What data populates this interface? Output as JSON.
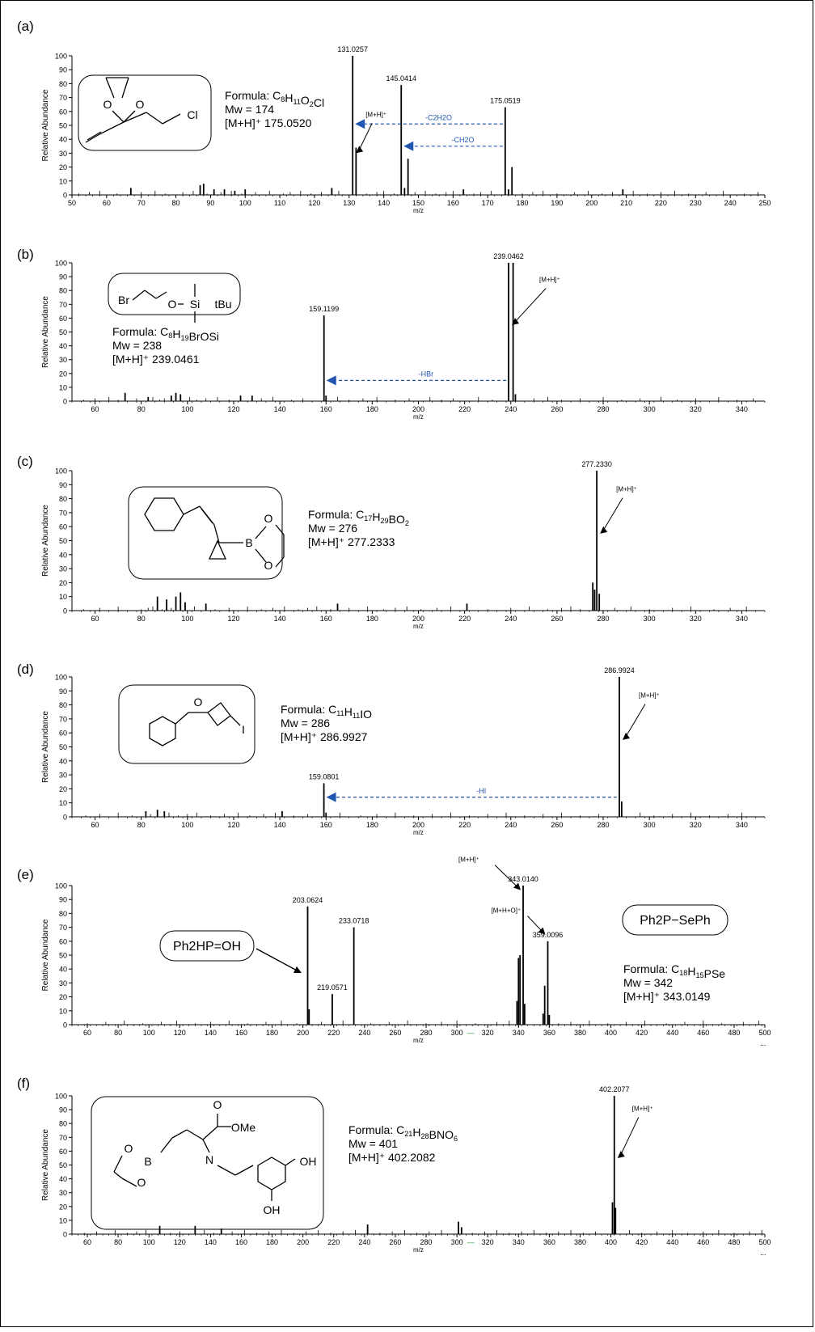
{
  "chart_data": [
    {
      "type": "bar",
      "panel_label": "(a)",
      "xlabel": "m/z",
      "ylabel": "Relative Abundance",
      "xlim": [
        50,
        250
      ],
      "ylim": [
        0,
        100
      ],
      "xticks": [
        50,
        60,
        70,
        80,
        90,
        100,
        110,
        120,
        130,
        140,
        150,
        160,
        170,
        180,
        190,
        200,
        210,
        220,
        230,
        240,
        250
      ],
      "yticks": [
        0,
        10,
        20,
        30,
        40,
        50,
        60,
        70,
        80,
        90,
        100
      ],
      "peaks": [
        {
          "x": 131.0257,
          "y": 100,
          "label": "131.0257"
        },
        {
          "x": 132.0,
          "y": 34
        },
        {
          "x": 145.0414,
          "y": 79,
          "label": "145.0414"
        },
        {
          "x": 146.0,
          "y": 5
        },
        {
          "x": 147.0,
          "y": 26
        },
        {
          "x": 175.0519,
          "y": 63,
          "label": "175.0519"
        },
        {
          "x": 176.0,
          "y": 4
        },
        {
          "x": 177.0,
          "y": 20
        },
        {
          "x": 67,
          "y": 5
        },
        {
          "x": 87,
          "y": 7
        },
        {
          "x": 88,
          "y": 8
        },
        {
          "x": 91,
          "y": 4
        },
        {
          "x": 94,
          "y": 4
        },
        {
          "x": 97,
          "y": 3
        },
        {
          "x": 100,
          "y": 4
        },
        {
          "x": 125,
          "y": 5
        },
        {
          "x": 163,
          "y": 4
        },
        {
          "x": 209,
          "y": 4
        }
      ],
      "noise": [
        52,
        55,
        58,
        63,
        70,
        74,
        77,
        82,
        85,
        89,
        93,
        96,
        99,
        103,
        107,
        111,
        113,
        116,
        119,
        122,
        127,
        135,
        138,
        140,
        143,
        149,
        152,
        155,
        158,
        160,
        166,
        168,
        171,
        180,
        183,
        186,
        190,
        195,
        199,
        203,
        206,
        212,
        216,
        220,
        224,
        228,
        233,
        238,
        244,
        248
      ],
      "arrows": [
        {
          "from": 175.0519,
          "to": 131.0257,
          "y": 51,
          "label": "-C2H2O",
          "sub": [
            "2",
            "2"
          ]
        },
        {
          "from": 175.0519,
          "to": 145.0414,
          "y": 35,
          "label": "-CH2O",
          "sub": [
            "",
            "2"
          ]
        }
      ],
      "mh_label": "[M+H]⁺",
      "compound": {
        "formula_prefix": "Formula: ",
        "formula": "C8H11O2Cl",
        "mw": "Mw = 174",
        "mh": "[M+H]⁺ 175.0520",
        "atoms": [
          "O",
          "O",
          "Cl"
        ]
      }
    },
    {
      "type": "bar",
      "panel_label": "(b)",
      "xlabel": "m/z",
      "ylabel": "Relative Abundance",
      "xlim": [
        50,
        350
      ],
      "ylim": [
        0,
        100
      ],
      "xticks": [
        60,
        80,
        100,
        120,
        140,
        160,
        180,
        200,
        220,
        240,
        260,
        280,
        300,
        320,
        340
      ],
      "yticks": [
        0,
        10,
        20,
        30,
        40,
        50,
        60,
        70,
        80,
        90,
        100
      ],
      "peaks": [
        {
          "x": 159.1199,
          "y": 62,
          "label": "159.1199"
        },
        {
          "x": 160.0,
          "y": 4
        },
        {
          "x": 239.0462,
          "y": 100,
          "label": "239.0462"
        },
        {
          "x": 241.0,
          "y": 100
        },
        {
          "x": 242.0,
          "y": 5
        },
        {
          "x": 73,
          "y": 6
        },
        {
          "x": 83,
          "y": 3
        },
        {
          "x": 93,
          "y": 4
        },
        {
          "x": 95,
          "y": 6
        },
        {
          "x": 97,
          "y": 5
        },
        {
          "x": 123,
          "y": 4
        },
        {
          "x": 128,
          "y": 4
        }
      ],
      "noise": [
        55,
        60,
        66,
        70,
        78,
        85,
        88,
        90,
        101,
        104,
        108,
        113,
        118,
        132,
        137,
        145,
        150,
        165,
        170,
        176,
        182,
        190,
        196,
        205,
        210,
        215,
        226,
        232,
        250,
        256,
        262,
        270,
        280,
        288,
        296,
        305,
        312,
        320,
        330,
        338,
        345
      ],
      "arrows": [
        {
          "from": 239.0462,
          "to": 159.1199,
          "y": 15,
          "label": "-HBr",
          "sub": []
        }
      ],
      "mh_label": "[M+H]⁺",
      "compound": {
        "formula_prefix": "Formula: ",
        "formula": "C8H19BrOSi",
        "mw": "Mw = 238",
        "mh": "[M+H]⁺ 239.0461",
        "atoms": [
          "Br",
          "O",
          "Si",
          "tBu"
        ]
      }
    },
    {
      "type": "bar",
      "panel_label": "(c)",
      "xlabel": "m/z",
      "ylabel": "Relative Abundance",
      "xlim": [
        50,
        350
      ],
      "ylim": [
        0,
        100
      ],
      "xticks": [
        60,
        80,
        100,
        120,
        140,
        160,
        180,
        200,
        220,
        240,
        260,
        280,
        300,
        320,
        340
      ],
      "yticks": [
        0,
        10,
        20,
        30,
        40,
        50,
        60,
        70,
        80,
        90,
        100
      ],
      "peaks": [
        {
          "x": 277.233,
          "y": 100,
          "label": "277.2330"
        },
        {
          "x": 275.5,
          "y": 20
        },
        {
          "x": 276.3,
          "y": 15
        },
        {
          "x": 278.3,
          "y": 12
        },
        {
          "x": 87,
          "y": 10
        },
        {
          "x": 91,
          "y": 8
        },
        {
          "x": 95,
          "y": 10
        },
        {
          "x": 97,
          "y": 13
        },
        {
          "x": 99,
          "y": 6
        },
        {
          "x": 108,
          "y": 5
        },
        {
          "x": 165,
          "y": 5
        },
        {
          "x": 221,
          "y": 5
        }
      ],
      "noise": [
        55,
        62,
        70,
        80,
        83,
        85,
        89,
        93,
        103,
        112,
        118,
        126,
        132,
        137,
        142,
        148,
        152,
        156,
        162,
        170,
        178,
        185,
        190,
        195,
        201,
        208,
        214,
        230,
        240,
        248,
        256,
        262,
        266,
        270,
        285,
        292,
        300,
        310,
        318,
        328,
        335,
        342
      ],
      "arrows": [],
      "mh_label": "[M+H]⁺",
      "compound": {
        "formula_prefix": "Formula: ",
        "formula": "C17H29BO2",
        "mw": "Mw = 276",
        "mh": "[M+H]⁺ 277.2333",
        "atoms": [
          "B",
          "O",
          "O"
        ]
      }
    },
    {
      "type": "bar",
      "panel_label": "(d)",
      "xlabel": "m/z",
      "ylabel": "Relative Abundance",
      "xlim": [
        50,
        350
      ],
      "ylim": [
        0,
        100
      ],
      "xticks": [
        60,
        80,
        100,
        120,
        140,
        160,
        180,
        200,
        220,
        240,
        260,
        280,
        300,
        320,
        340
      ],
      "yticks": [
        0,
        10,
        20,
        30,
        40,
        50,
        60,
        70,
        80,
        90,
        100
      ],
      "peaks": [
        {
          "x": 159.0801,
          "y": 24,
          "label": "159.0801"
        },
        {
          "x": 160.0,
          "y": 3
        },
        {
          "x": 286.9924,
          "y": 100,
          "label": "286.9924"
        },
        {
          "x": 288.0,
          "y": 11
        },
        {
          "x": 82,
          "y": 4
        },
        {
          "x": 87,
          "y": 5
        },
        {
          "x": 90,
          "y": 4
        },
        {
          "x": 141,
          "y": 4
        }
      ],
      "noise": [
        56,
        62,
        70,
        76,
        84,
        92,
        96,
        100,
        104,
        110,
        116,
        122,
        127,
        133,
        138,
        146,
        152,
        166,
        175,
        182,
        190,
        198,
        206,
        214,
        222,
        230,
        238,
        246,
        254,
        262,
        270,
        278,
        296,
        302,
        310,
        318,
        326,
        334,
        340
      ],
      "arrows": [
        {
          "from": 286.9924,
          "to": 159.0801,
          "y": 14,
          "label": "-HI",
          "sub": []
        }
      ],
      "mh_label": "[M+H]⁺",
      "compound": {
        "formula_prefix": "Formula: ",
        "formula": "C11H11IO",
        "mw": "Mw = 286",
        "mh": "[M+H]⁺ 286.9927",
        "atoms": [
          "O",
          "I"
        ]
      }
    },
    {
      "type": "bar",
      "panel_label": "(e)",
      "xlabel": "m/z",
      "ylabel": "Relative Abundance",
      "xlim": [
        50,
        500
      ],
      "ylim": [
        0,
        100
      ],
      "xticks": [
        60,
        80,
        100,
        120,
        140,
        160,
        180,
        200,
        220,
        240,
        260,
        280,
        300,
        320,
        340,
        360,
        380,
        400,
        420,
        440,
        460,
        480,
        500
      ],
      "yticks": [
        0,
        10,
        20,
        30,
        40,
        50,
        60,
        70,
        80,
        90,
        100
      ],
      "peaks": [
        {
          "x": 203.0624,
          "y": 85,
          "label": "203.0624"
        },
        {
          "x": 204.0,
          "y": 11
        },
        {
          "x": 219.0571,
          "y": 22,
          "label": "219.0571"
        },
        {
          "x": 233.0718,
          "y": 70,
          "label": "233.0718"
        },
        {
          "x": 343.014,
          "y": 100,
          "label": "343.0140"
        },
        {
          "x": 339.0,
          "y": 17
        },
        {
          "x": 340.0,
          "y": 48
        },
        {
          "x": 341.0,
          "y": 50
        },
        {
          "x": 344.0,
          "y": 15
        },
        {
          "x": 359.0096,
          "y": 60,
          "label": "359.0096"
        },
        {
          "x": 356.0,
          "y": 8
        },
        {
          "x": 357.0,
          "y": 28
        },
        {
          "x": 360.0,
          "y": 7
        }
      ],
      "noise": [
        60,
        72,
        84,
        96,
        108,
        118,
        130,
        140,
        152,
        164,
        176,
        186,
        196,
        212,
        226,
        244,
        256,
        268,
        280,
        290,
        300,
        312,
        326,
        334,
        366,
        374,
        386,
        398,
        410,
        422,
        436,
        448,
        460,
        472,
        486,
        496
      ],
      "arrows": [],
      "peak_notes": [
        {
          "text": "[M+H]⁺",
          "target": 343.014,
          "ty": 95
        },
        {
          "text": "[M+H+O]⁺",
          "target": 359.0096,
          "ty": 63
        }
      ],
      "legend_marker": "—",
      "ellipsis": "...",
      "compound": {
        "formula_prefix": "Formula: ",
        "formula": "C18H15PSe",
        "mw": "Mw = 342",
        "mh": "[M+H]⁺ 343.0149",
        "name": "Ph2P−SePh",
        "fragment": "Ph2HP=OH"
      }
    },
    {
      "type": "bar",
      "panel_label": "(f)",
      "xlabel": "m/z",
      "ylabel": "Relative Abundance",
      "xlim": [
        50,
        500
      ],
      "ylim": [
        0,
        100
      ],
      "xticks": [
        60,
        80,
        100,
        120,
        140,
        160,
        180,
        200,
        220,
        240,
        260,
        280,
        300,
        320,
        340,
        360,
        380,
        400,
        420,
        440,
        460,
        480,
        500
      ],
      "yticks": [
        0,
        10,
        20,
        30,
        40,
        50,
        60,
        70,
        80,
        90,
        100
      ],
      "peaks": [
        {
          "x": 402.2077,
          "y": 100,
          "label": "402.2077"
        },
        {
          "x": 401.0,
          "y": 23
        },
        {
          "x": 403.0,
          "y": 19
        },
        {
          "x": 107,
          "y": 6
        },
        {
          "x": 130,
          "y": 6
        },
        {
          "x": 147,
          "y": 4
        },
        {
          "x": 242,
          "y": 7
        },
        {
          "x": 301,
          "y": 9
        },
        {
          "x": 303,
          "y": 5
        }
      ],
      "noise": [
        58,
        66,
        78,
        86,
        92,
        98,
        114,
        120,
        136,
        142,
        154,
        162,
        170,
        178,
        186,
        194,
        202,
        210,
        218,
        226,
        234,
        250,
        258,
        266,
        274,
        282,
        290,
        310,
        318,
        326,
        334,
        342,
        350,
        358,
        366,
        374,
        382,
        390,
        412,
        420,
        430,
        440,
        450,
        460,
        470,
        480,
        490,
        498
      ],
      "arrows": [],
      "mh_label": "[M+H]⁺",
      "legend_marker": "—",
      "ellipsis": "...",
      "compound": {
        "formula_prefix": "Formula: ",
        "formula": "C21H28BNO6",
        "mw": "Mw = 401",
        "mh": "[M+H]⁺ 402.2082",
        "atoms": [
          "O",
          "OMe",
          "N",
          "B",
          "O",
          "O",
          "OH",
          "OH"
        ]
      }
    }
  ]
}
